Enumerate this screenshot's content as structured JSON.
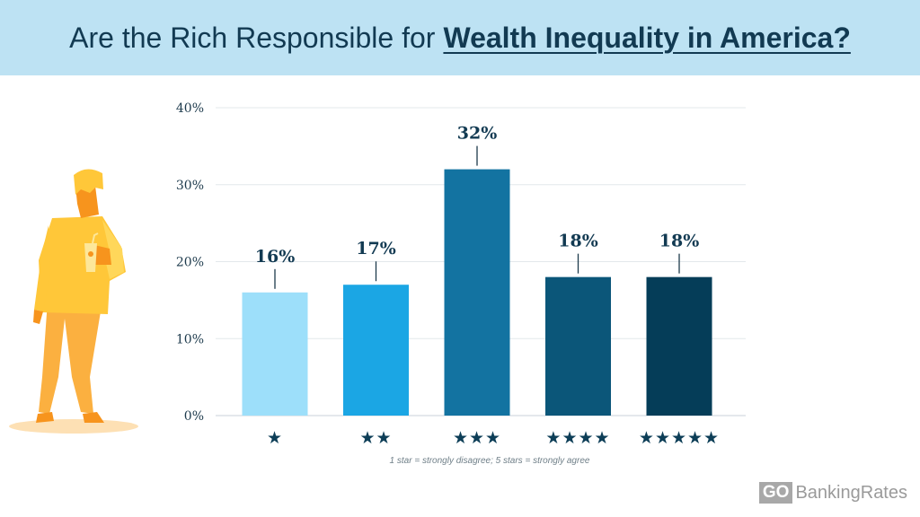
{
  "header": {
    "title_plain": "Are the Rich Responsible for",
    "title_emphasis": "Wealth Inequality in America?"
  },
  "chart_data": {
    "type": "bar",
    "categories": [
      "★",
      "★★",
      "★★★",
      "★★★★",
      "★★★★★"
    ],
    "values": [
      16,
      17,
      32,
      18,
      18
    ],
    "value_labels": [
      "16%",
      "17%",
      "32%",
      "18%",
      "18%"
    ],
    "bar_colors": [
      "#9ddffa",
      "#1ba6e4",
      "#1373a1",
      "#0b5679",
      "#053d58"
    ],
    "ylim": [
      0,
      40
    ],
    "yticks": [
      0,
      10,
      20,
      30,
      40
    ],
    "ytick_labels": [
      "0%",
      "10%",
      "20%",
      "30%",
      "40%"
    ],
    "title": "Are the Rich Responsible for Wealth Inequality in America?",
    "xlabel": "",
    "ylabel": "",
    "grid": true
  },
  "footnote": "1 star = strongly disagree; 5 stars = strongly agree",
  "brand": {
    "go": "GO",
    "name": "BankingRates"
  }
}
